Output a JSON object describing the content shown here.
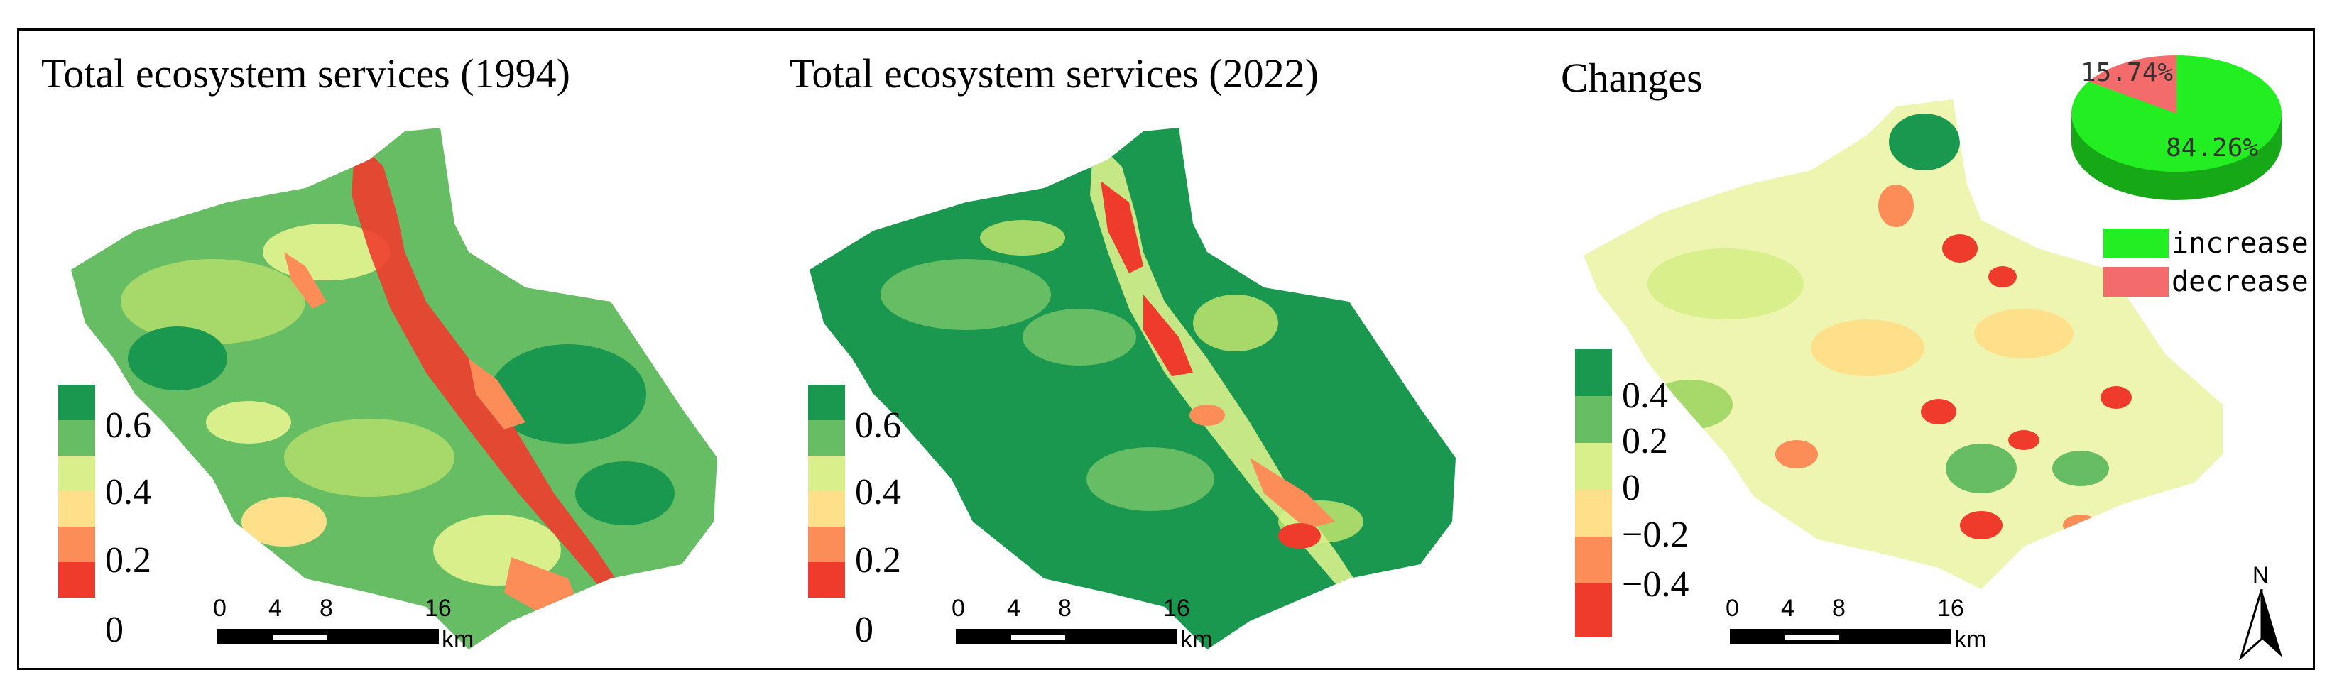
{
  "panels": [
    {
      "title": "Total ecosystem services (1994)",
      "legend": [
        "0.6",
        "0.4",
        "0.2",
        "0"
      ],
      "legend_colors": [
        "#1a9850",
        "#66bd63",
        "#d9ef8b",
        "#fee08b",
        "#fc8d59",
        "#ef3b2c"
      ]
    },
    {
      "title": "Total ecosystem services (2022)",
      "legend": [
        "0.6",
        "0.4",
        "0.2",
        "0"
      ],
      "legend_colors": [
        "#1a9850",
        "#66bd63",
        "#d9ef8b",
        "#fee08b",
        "#fc8d59",
        "#ef3b2c"
      ]
    },
    {
      "title": "Changes",
      "legend": [
        "0.4",
        "0.2",
        "0",
        "−0.2",
        "−0.4"
      ],
      "legend_colors": [
        "#1a9850",
        "#66bd63",
        "#d9ef8b",
        "#fee08b",
        "#fc8d59",
        "#ef3b2c"
      ]
    }
  ],
  "scalebar": {
    "ticks": [
      "0",
      "4",
      "8",
      "16"
    ],
    "unit": "km"
  },
  "north_label": "N",
  "pie": {
    "slices": [
      {
        "label": "increase",
        "value": 84.26,
        "text": "84.26%",
        "color": "#22ee22"
      },
      {
        "label": "decrease",
        "value": 15.74,
        "text": "15.74%",
        "color": "#f46b6b"
      }
    ]
  }
}
